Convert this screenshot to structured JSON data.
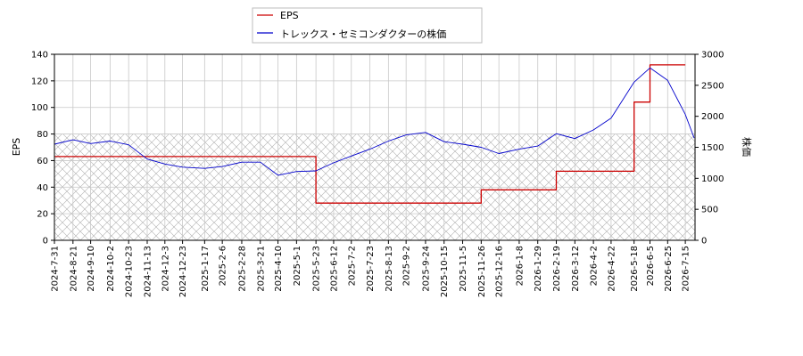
{
  "chart_data": {
    "type": "line",
    "legend_placement": "top-center",
    "grid": true,
    "hatched_band": true,
    "x_ticks": [
      "2024-7-31",
      "2024-8-21",
      "2024-9-10",
      "2024-10-2",
      "2024-10-23",
      "2024-11-13",
      "2024-12-3",
      "2024-12-23",
      "2025-1-17",
      "2025-2-6",
      "2025-2-28",
      "2025-3-21",
      "2025-4-10",
      "2025-5-1",
      "2025-5-23",
      "2025-6-12",
      "2025-7-2",
      "2025-7-23",
      "2025-8-13",
      "2025-9-2",
      "2025-9-24",
      "2025-10-15",
      "2025-11-5",
      "2025-11-26",
      "2025-12-16",
      "2026-1-8",
      "2026-1-29",
      "2026-2-19",
      "2026-3-12",
      "2026-4-2",
      "2026-4-22",
      "2026-5-18",
      "2026-6-5",
      "2026-6-25",
      "2026-7-15"
    ],
    "left_axis": {
      "label": "EPS",
      "ylim": [
        0,
        140
      ],
      "ticks": [
        "0",
        "20",
        "40",
        "60",
        "80",
        "100",
        "120",
        "140"
      ]
    },
    "right_axis": {
      "label": "株価",
      "ylim": [
        0,
        3000
      ],
      "ticks": [
        "0",
        "500",
        "1000",
        "1500",
        "2000",
        "2500",
        "3000"
      ]
    },
    "series": [
      {
        "name": "EPS",
        "color": "#cc0000",
        "axis": "left",
        "step": true,
        "points": [
          [
            "2024-7-31",
            63
          ],
          [
            "2024-10-2",
            63
          ],
          [
            "2024-11-13",
            63
          ],
          [
            "2025-5-23",
            28
          ],
          [
            "2025-11-5",
            28
          ],
          [
            "2025-11-26",
            38
          ],
          [
            "2026-1-29",
            38
          ],
          [
            "2026-2-19",
            52
          ],
          [
            "2026-4-22",
            52
          ],
          [
            "2026-5-18",
            104
          ],
          [
            "2026-6-5",
            132
          ],
          [
            "2026-7-15",
            132
          ]
        ]
      },
      {
        "name": "トレックス・セミコンダクターの株価",
        "color": "#0000cc",
        "axis": "right",
        "step": false,
        "points": [
          [
            "2024-7-31",
            1550
          ],
          [
            "2024-8-21",
            1620
          ],
          [
            "2024-9-10",
            1560
          ],
          [
            "2024-10-2",
            1600
          ],
          [
            "2024-10-23",
            1540
          ],
          [
            "2024-11-13",
            1310
          ],
          [
            "2024-12-3",
            1230
          ],
          [
            "2024-12-23",
            1180
          ],
          [
            "2025-1-17",
            1160
          ],
          [
            "2025-2-6",
            1190
          ],
          [
            "2025-2-28",
            1260
          ],
          [
            "2025-3-21",
            1260
          ],
          [
            "2025-4-10",
            1050
          ],
          [
            "2025-5-1",
            1110
          ],
          [
            "2025-5-23",
            1120
          ],
          [
            "2025-6-12",
            1250
          ],
          [
            "2025-7-2",
            1360
          ],
          [
            "2025-7-23",
            1470
          ],
          [
            "2025-8-13",
            1600
          ],
          [
            "2025-9-2",
            1700
          ],
          [
            "2025-9-24",
            1740
          ],
          [
            "2025-10-15",
            1590
          ],
          [
            "2025-11-5",
            1550
          ],
          [
            "2025-11-26",
            1500
          ],
          [
            "2025-12-16",
            1400
          ],
          [
            "2026-1-8",
            1470
          ],
          [
            "2026-1-29",
            1520
          ],
          [
            "2026-2-19",
            1720
          ],
          [
            "2026-3-12",
            1640
          ],
          [
            "2026-4-2",
            1780
          ],
          [
            "2026-4-22",
            1970
          ],
          [
            "2026-5-18",
            2550
          ],
          [
            "2026-6-5",
            2780
          ],
          [
            "2026-6-25",
            2580
          ],
          [
            "2026-7-15",
            2030
          ],
          [
            "2026-7-25",
            1650
          ]
        ]
      }
    ]
  }
}
